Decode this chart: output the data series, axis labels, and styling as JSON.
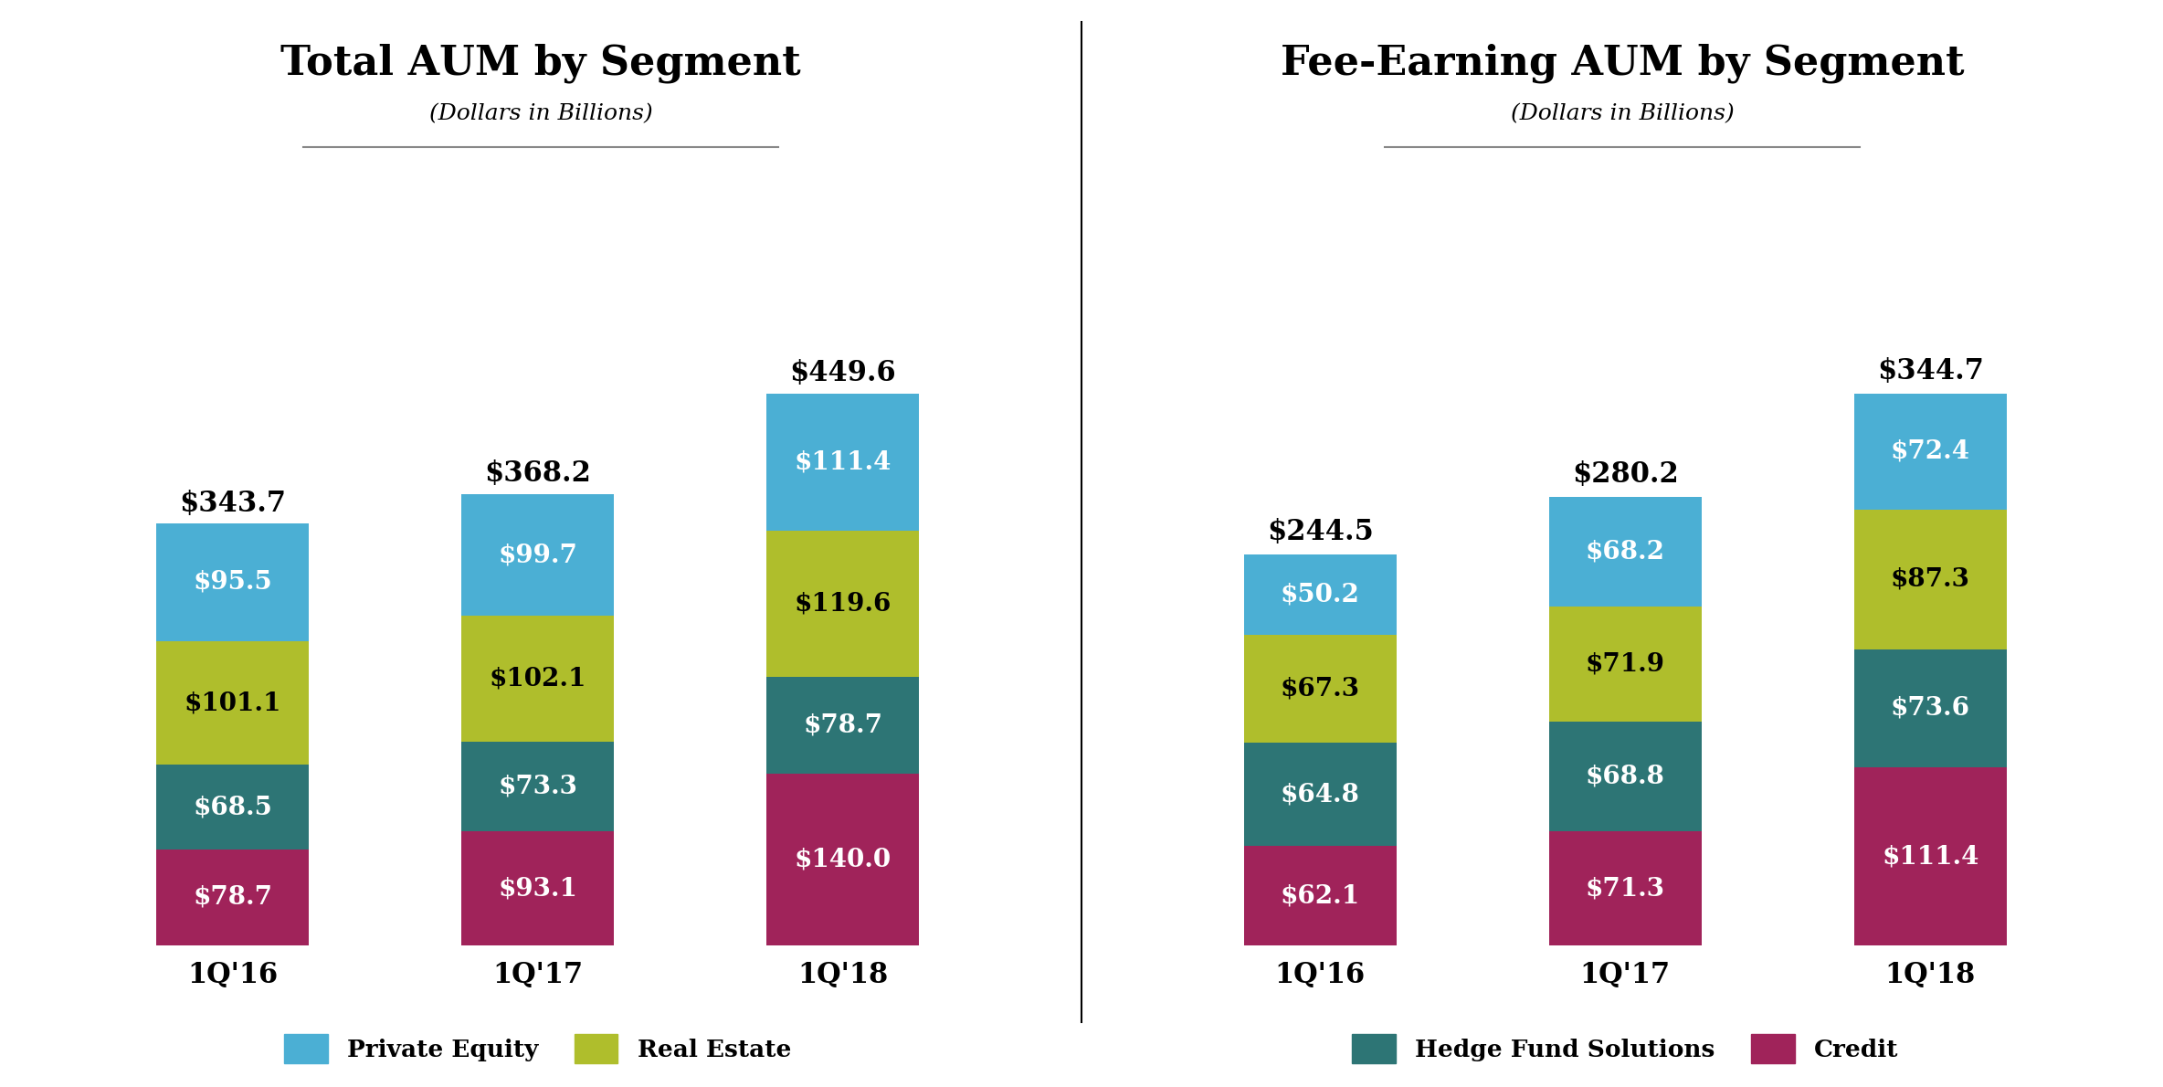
{
  "left_title": "Total AUM by Segment",
  "left_subtitle": "(Dollars in Billions)",
  "right_title": "Fee-Earning AUM by Segment",
  "right_subtitle": "(Dollars in Billions)",
  "categories": [
    "1Q'16",
    "1Q'17",
    "1Q'18"
  ],
  "left_totals": [
    "$343.7",
    "$368.2",
    "$449.6"
  ],
  "right_totals": [
    "$244.5",
    "$280.2",
    "$344.7"
  ],
  "left_data": {
    "Credit": [
      78.7,
      93.1,
      140.0
    ],
    "HedgeFund": [
      68.5,
      73.3,
      78.7
    ],
    "RealEstate": [
      101.1,
      102.1,
      119.6
    ],
    "PrivateEquity": [
      95.5,
      99.7,
      111.4
    ]
  },
  "right_data": {
    "Credit": [
      62.1,
      71.3,
      111.4
    ],
    "HedgeFund": [
      64.8,
      68.8,
      73.6
    ],
    "RealEstate": [
      67.3,
      71.9,
      87.3
    ],
    "PrivateEquity": [
      50.2,
      68.2,
      72.4
    ]
  },
  "left_labels": {
    "Credit": [
      "$78.7",
      "$93.1",
      "$140.0"
    ],
    "HedgeFund": [
      "$68.5",
      "$73.3",
      "$78.7"
    ],
    "RealEstate": [
      "$101.1",
      "$102.1",
      "$119.6"
    ],
    "PrivateEquity": [
      "$95.5",
      "$99.7",
      "$111.4"
    ]
  },
  "right_labels": {
    "Credit": [
      "$62.1",
      "$71.3",
      "$111.4"
    ],
    "HedgeFund": [
      "$64.8",
      "$68.8",
      "$73.6"
    ],
    "RealEstate": [
      "$67.3",
      "$71.9",
      "$87.3"
    ],
    "PrivateEquity": [
      "$50.2",
      "$68.2",
      "$72.4"
    ]
  },
  "colors": {
    "PrivateEquity": "#4BAFD4",
    "RealEstate": "#AFBE2C",
    "HedgeFund": "#2D7575",
    "Credit": "#A0235A"
  },
  "legend_labels": {
    "PrivateEquity": "Private Equity",
    "RealEstate": "Real Estate",
    "HedgeFund": "Hedge Fund Solutions",
    "Credit": "Credit"
  },
  "bar_width": 0.5,
  "background_color": "#FFFFFF"
}
